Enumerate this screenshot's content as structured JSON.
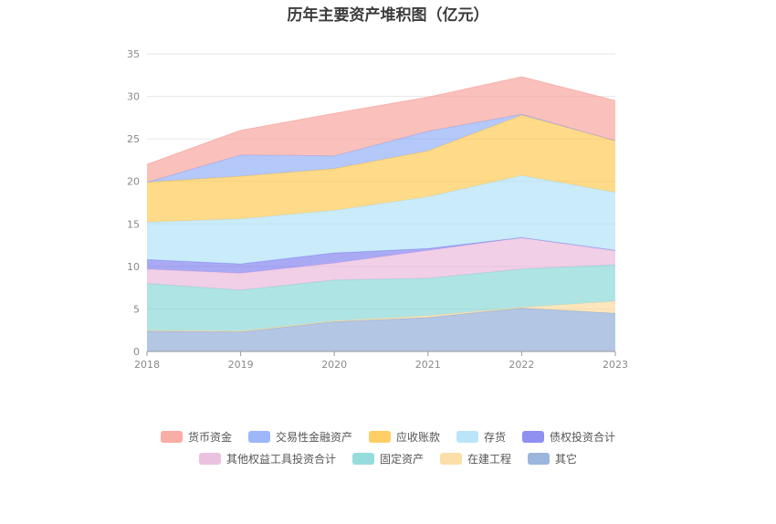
{
  "chart_data": {
    "type": "area",
    "stacked": true,
    "title": "历年主要资产堆积图（亿元）",
    "categories": [
      "2018",
      "2019",
      "2020",
      "2021",
      "2022",
      "2023"
    ],
    "ylim": [
      0,
      35
    ],
    "yticks": [
      "0",
      "5",
      "10",
      "15",
      "20",
      "25",
      "30",
      "35"
    ],
    "grid": true,
    "legend_position": "bottom",
    "series": [
      {
        "name": "其它",
        "color": "#8aa8d6",
        "values": [
          2.4,
          2.3,
          3.5,
          4.0,
          5.1,
          4.5
        ]
      },
      {
        "name": "在建工程",
        "color": "#fcd89a",
        "values": [
          0.1,
          0.1,
          0.1,
          0.2,
          0.1,
          1.4
        ]
      },
      {
        "name": "固定资产",
        "color": "#84d6d6",
        "values": [
          5.5,
          4.8,
          4.8,
          4.4,
          4.5,
          4.3
        ]
      },
      {
        "name": "其他权益工具投资合计",
        "color": "#e8b6da",
        "values": [
          1.7,
          2.0,
          2.0,
          3.3,
          3.7,
          1.7
        ]
      },
      {
        "name": "债权投资合计",
        "color": "#7c7cee",
        "values": [
          1.1,
          1.1,
          1.2,
          0.2,
          0.0,
          0.0
        ]
      },
      {
        "name": "存货",
        "color": "#aee0f7",
        "values": [
          4.4,
          5.3,
          5.0,
          6.1,
          7.3,
          6.8
        ]
      },
      {
        "name": "应收账款",
        "color": "#ffc64a",
        "values": [
          4.7,
          5.0,
          4.9,
          5.4,
          7.1,
          6.1
        ]
      },
      {
        "name": "交易性金融资产",
        "color": "#8caaf8",
        "values": [
          0.0,
          2.5,
          1.5,
          2.3,
          0.1,
          0.0
        ]
      },
      {
        "name": "货币资金",
        "color": "#f79f98",
        "values": [
          2.1,
          2.9,
          5.0,
          4.0,
          4.4,
          4.7
        ]
      }
    ],
    "legend_rows": [
      [
        "货币资金",
        "交易性金融资产",
        "应收账款",
        "存货",
        "债权投资合计"
      ],
      [
        "其他权益工具投资合计",
        "固定资产",
        "在建工程",
        "其它"
      ]
    ]
  }
}
